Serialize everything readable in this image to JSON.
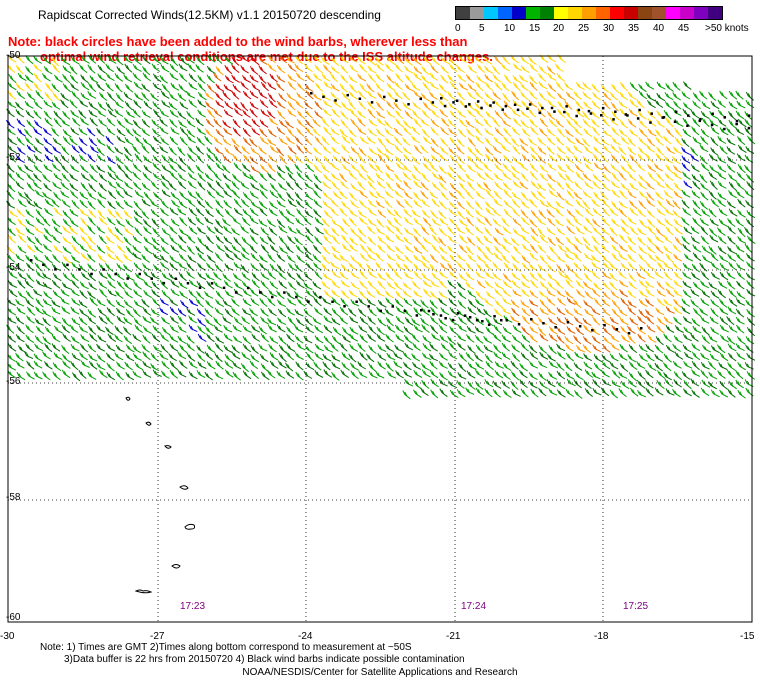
{
  "title": "Rapidscat Corrected Winds(12.5KM) v1.1 20150720 descending",
  "note_red_line1": "Note: black circles have been added to the wind barbs, wherever less than",
  "note_red_line2": "optimal wind retrieval conditions are met due to the ISS altitude changes.",
  "legend": {
    "labels": [
      "0",
      "5",
      "10",
      "15",
      "20",
      "25",
      "30",
      "35",
      "40",
      "45",
      ">50 knots"
    ],
    "colors": [
      "#404040",
      "#9a9a9a",
      "#00c8ff",
      "#0064ff",
      "#0000c8",
      "#00b400",
      "#008000",
      "#ffff00",
      "#ffd700",
      "#ffa000",
      "#ff6400",
      "#ff0000",
      "#c80000",
      "#8b4513",
      "#a0522d",
      "#ff00ff",
      "#c800c8",
      "#8000c0",
      "#400080"
    ]
  },
  "axes": {
    "x_ticks": [
      "-30",
      "-27",
      "-24",
      "-21",
      "-18",
      "-15"
    ],
    "y_ticks": [
      "-50",
      "-52",
      "-54",
      "-56",
      "-58",
      "-60"
    ]
  },
  "times": [
    "17:23",
    "17:24",
    "17:25"
  ],
  "bottom_note_line1": "Note: 1) Times are GMT 2)Times along bottom correspond to measurement at ~50S",
  "bottom_note_line2": "3)Data buffer is 22 hrs from 20150720 4) Black wind barbs indicate possible contamination",
  "credit": "NOAA/NESDIS/Center for Satellite Applications and Research",
  "colors": {
    "green": "#00a000",
    "darkgreen": "#007000",
    "yellow": "#ffd700",
    "orange": "#ffa000",
    "darkorange": "#e06000",
    "red": "#d00000",
    "blue": "#0000d0",
    "purple": "#800080"
  }
}
